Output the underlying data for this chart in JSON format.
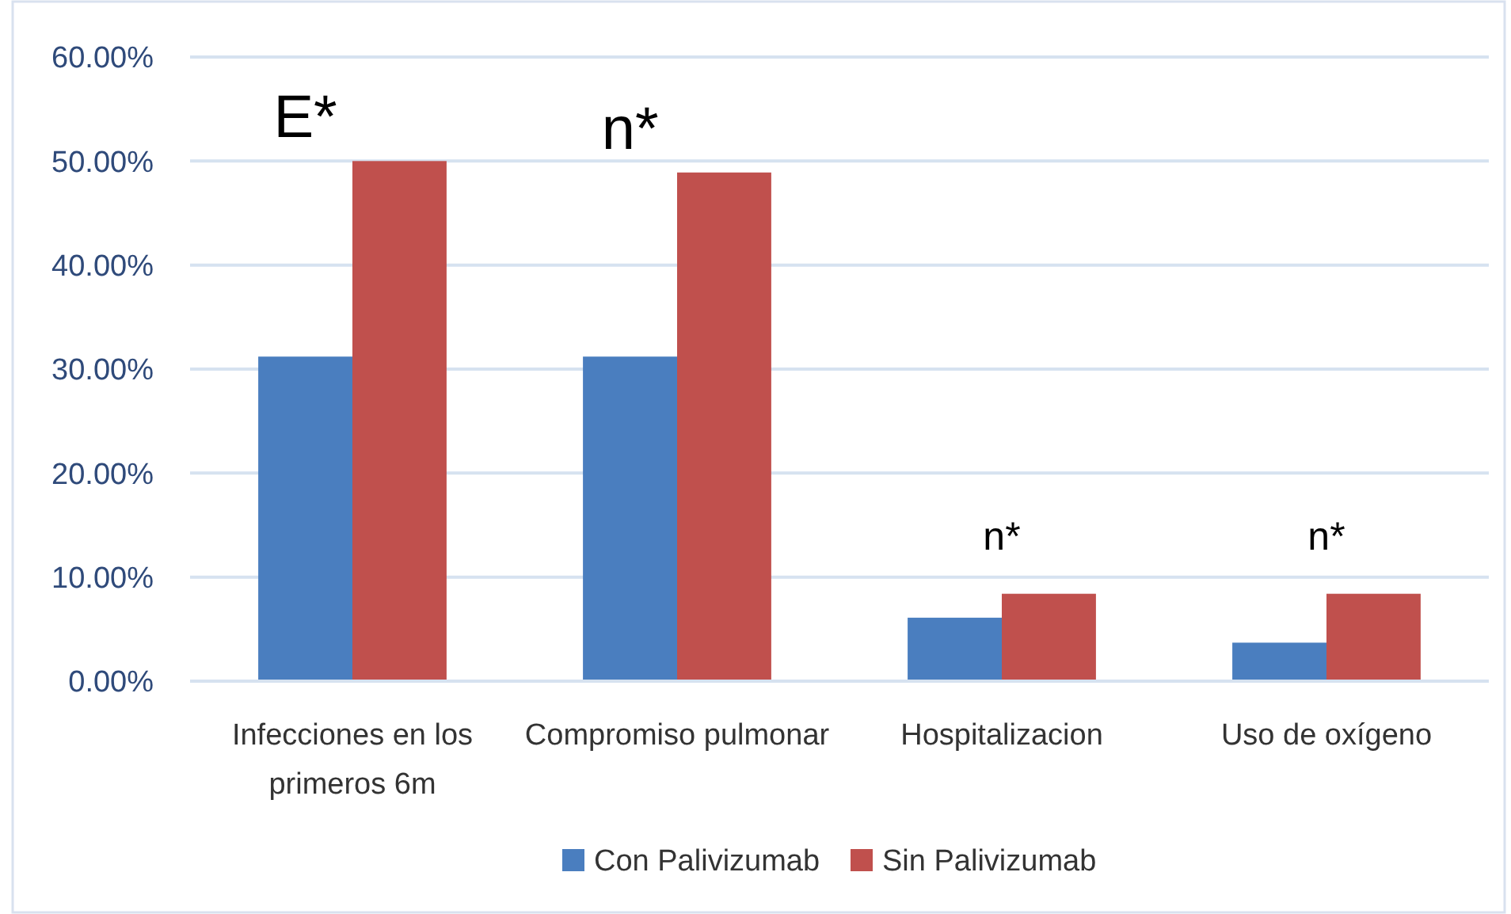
{
  "chart_data": {
    "type": "bar",
    "categories": [
      "Infecciones en los primeros 6m",
      "Compromiso pulmonar",
      "Hospitalizacion",
      "Uso de oxígeno"
    ],
    "series": [
      {
        "name": "Con Palivizumab",
        "color": "#4a7ebf",
        "values": [
          31.2,
          31.2,
          6.1,
          3.7
        ]
      },
      {
        "name": "Sin Palivizumab",
        "color": "#c0504d",
        "values": [
          50.0,
          48.9,
          8.4,
          8.4
        ]
      }
    ],
    "ylim": [
      0,
      60
    ],
    "yticks": [
      {
        "value": 0,
        "label": "0.00%"
      },
      {
        "value": 10,
        "label": "10.00%"
      },
      {
        "value": 20,
        "label": "20.00%"
      },
      {
        "value": 30,
        "label": "30.00%"
      },
      {
        "value": 40,
        "label": "40.00%"
      },
      {
        "value": 50,
        "label": "50.00%"
      },
      {
        "value": 60,
        "label": "60.00%"
      }
    ],
    "grid": "y",
    "legend": "bottom",
    "annotations": [
      {
        "text": "E*",
        "x": "Infecciones en los primeros 6m",
        "y": 50.0
      },
      {
        "text": "n*",
        "x": "Compromiso pulmonar",
        "y": 48.9
      },
      {
        "text": "n*",
        "x": "Hospitalizacion",
        "y": 8.4
      },
      {
        "text": "n*",
        "x": "Uso de oxígeno",
        "y": 8.4
      }
    ]
  }
}
